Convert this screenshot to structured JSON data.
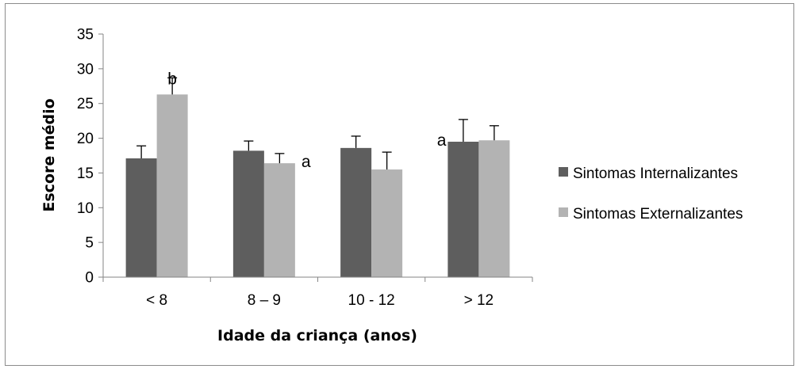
{
  "chart_data": {
    "type": "bar",
    "title": "",
    "xlabel": "Idade da criança (anos)",
    "ylabel": "Escore médio",
    "categories": [
      "< 8",
      "8 – 9",
      "10 - 12",
      "> 12"
    ],
    "ylim": [
      0,
      35
    ],
    "yticks": [
      0,
      5,
      10,
      15,
      20,
      25,
      30,
      35
    ],
    "series": [
      {
        "name": "Sintomas Internalizantes",
        "color": "#5e5e5e",
        "values": [
          17.1,
          18.2,
          18.6,
          19.5
        ],
        "errors": [
          1.8,
          1.4,
          1.7,
          3.2
        ]
      },
      {
        "name": "Sintomas Externalizantes",
        "color": "#b3b3b3",
        "values": [
          26.3,
          16.4,
          15.5,
          19.7
        ],
        "errors": [
          2.4,
          1.4,
          2.5,
          2.1
        ]
      }
    ],
    "annotations": [
      {
        "text": "b",
        "category": 0,
        "series": 1
      },
      {
        "text": "a",
        "category": 1,
        "series": 1
      },
      {
        "text": "a",
        "category": 3,
        "series": 0
      }
    ],
    "grid": false,
    "legend": "right"
  }
}
